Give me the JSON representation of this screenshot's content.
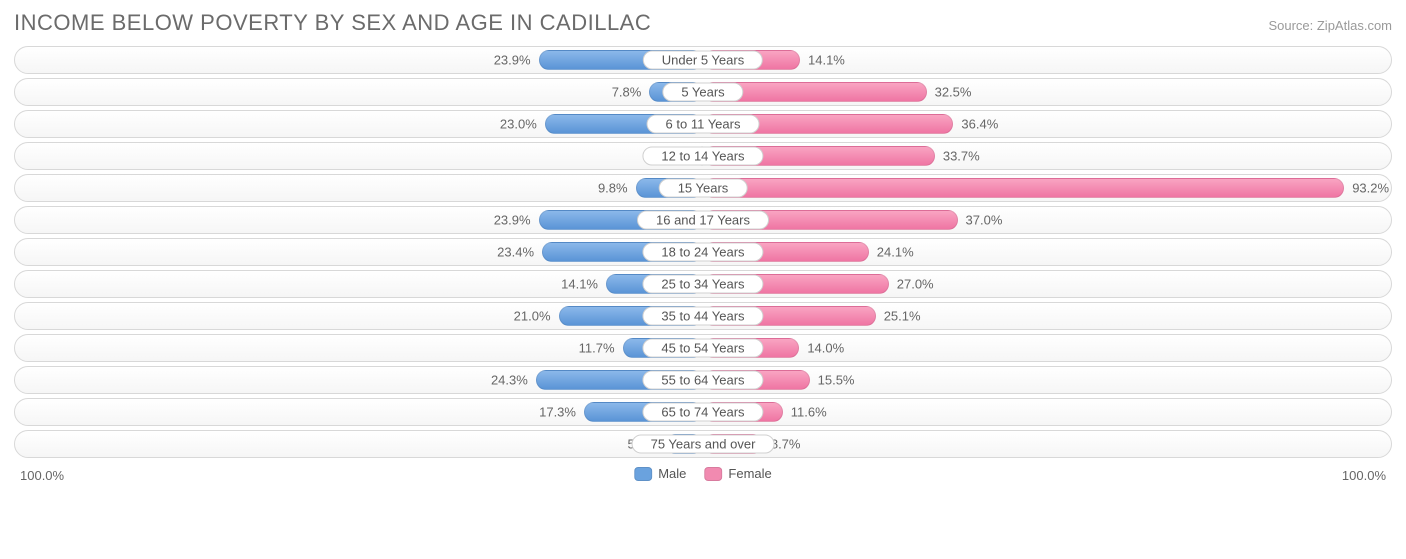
{
  "chart": {
    "type": "population-pyramid",
    "title": "INCOME BELOW POVERTY BY SEX AND AGE IN CADILLAC",
    "source": "Source: ZipAtlas.com",
    "max_pct": 100.0,
    "axis_label_left": "100.0%",
    "axis_label_right": "100.0%",
    "colors": {
      "male_top": "#8bb8ea",
      "male_bottom": "#5a94d6",
      "female_top": "#f9a4c2",
      "female_bottom": "#ef75a3",
      "track_border": "#d8d8d8",
      "text": "#666666",
      "title": "#6b6b6b",
      "source_text": "#9a9a9a",
      "background": "#ffffff"
    },
    "typography": {
      "title_fontsize": 22,
      "label_fontsize": 13,
      "source_fontsize": 13
    },
    "legend": {
      "items": [
        {
          "label": "Male",
          "swatch": "#6aa2de"
        },
        {
          "label": "Female",
          "swatch": "#f18ab0"
        }
      ]
    },
    "rows": [
      {
        "category": "Under 5 Years",
        "male": 23.9,
        "female": 14.1
      },
      {
        "category": "5 Years",
        "male": 7.8,
        "female": 32.5
      },
      {
        "category": "6 to 11 Years",
        "male": 23.0,
        "female": 36.4
      },
      {
        "category": "12 to 14 Years",
        "male": 0.0,
        "female": 33.7
      },
      {
        "category": "15 Years",
        "male": 9.8,
        "female": 93.2
      },
      {
        "category": "16 and 17 Years",
        "male": 23.9,
        "female": 37.0
      },
      {
        "category": "18 to 24 Years",
        "male": 23.4,
        "female": 24.1
      },
      {
        "category": "25 to 34 Years",
        "male": 14.1,
        "female": 27.0
      },
      {
        "category": "35 to 44 Years",
        "male": 21.0,
        "female": 25.1
      },
      {
        "category": "45 to 54 Years",
        "male": 11.7,
        "female": 14.0
      },
      {
        "category": "55 to 64 Years",
        "male": 24.3,
        "female": 15.5
      },
      {
        "category": "65 to 74 Years",
        "male": 17.3,
        "female": 11.6
      },
      {
        "category": "75 Years and over",
        "male": 5.5,
        "female": 8.7
      }
    ]
  }
}
